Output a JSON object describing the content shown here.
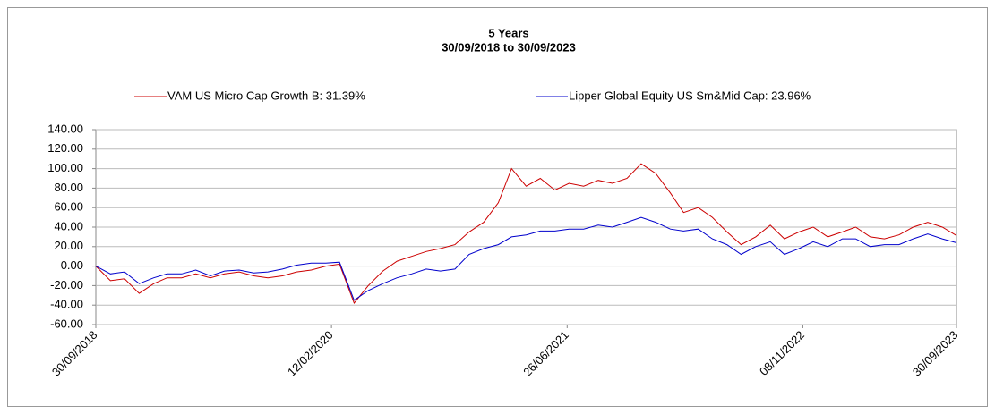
{
  "chart_data": {
    "type": "line",
    "title": "5 Years",
    "subtitle": "30/09/2018 to 30/09/2023",
    "x": [
      "30/09/2018",
      "31/10/2018",
      "30/11/2018",
      "31/12/2018",
      "31/01/2019",
      "28/02/2019",
      "31/03/2019",
      "30/04/2019",
      "31/05/2019",
      "30/06/2019",
      "31/07/2019",
      "31/08/2019",
      "30/09/2019",
      "31/10/2019",
      "30/11/2019",
      "31/12/2019",
      "31/01/2020",
      "29/02/2020",
      "31/03/2020",
      "30/04/2020",
      "31/05/2020",
      "30/06/2020",
      "31/07/2020",
      "31/08/2020",
      "30/09/2020",
      "31/10/2020",
      "30/11/2020",
      "31/12/2020",
      "31/01/2021",
      "28/02/2021",
      "31/03/2021",
      "30/04/2021",
      "31/05/2021",
      "30/06/2021",
      "31/07/2021",
      "31/08/2021",
      "30/09/2021",
      "31/10/2021",
      "30/11/2021",
      "31/12/2021",
      "31/01/2022",
      "28/02/2022",
      "31/03/2022",
      "30/04/2022",
      "31/05/2022",
      "30/06/2022",
      "31/07/2022",
      "31/08/2022",
      "30/09/2022",
      "31/10/2022",
      "30/11/2022",
      "31/12/2022",
      "31/01/2023",
      "28/02/2023",
      "31/03/2023",
      "30/04/2023",
      "31/05/2023",
      "30/06/2023",
      "31/07/2023",
      "31/08/2023",
      "30/09/2023"
    ],
    "series": [
      {
        "name": "VAM US Micro Cap Growth B: 31.39%",
        "color": "#cc0000",
        "values": [
          0,
          -15,
          -13,
          -28,
          -18,
          -12,
          -12,
          -8,
          -12,
          -8,
          -6,
          -10,
          -12,
          -10,
          -6,
          -4,
          0,
          2,
          -38,
          -20,
          -5,
          5,
          10,
          15,
          18,
          22,
          35,
          45,
          65,
          100,
          82,
          90,
          78,
          85,
          82,
          88,
          85,
          90,
          105,
          95,
          75,
          55,
          60,
          50,
          35,
          22,
          30,
          42,
          28,
          35,
          40,
          30,
          35,
          40,
          30,
          28,
          32,
          40,
          45,
          40,
          31.39
        ]
      },
      {
        "name": "Lipper Global Equity US Sm&Mid Cap: 23.96%",
        "color": "#0000cc",
        "values": [
          0,
          -8,
          -6,
          -18,
          -12,
          -8,
          -8,
          -4,
          -10,
          -5,
          -4,
          -7,
          -6,
          -3,
          1,
          3,
          3,
          4,
          -35,
          -25,
          -18,
          -12,
          -8,
          -3,
          -5,
          -3,
          12,
          18,
          22,
          30,
          32,
          36,
          36,
          38,
          38,
          42,
          40,
          45,
          50,
          45,
          38,
          36,
          38,
          28,
          22,
          12,
          20,
          25,
          12,
          18,
          25,
          20,
          28,
          28,
          20,
          22,
          22,
          28,
          33,
          28,
          23.96
        ]
      }
    ],
    "xticks": [
      "30/09/2018",
      "12/02/2020",
      "26/06/2021",
      "08/11/2022",
      "30/09/2023"
    ],
    "ylim": [
      -60,
      140
    ],
    "yticks": [
      {
        "value": -60,
        "label": "-60.00"
      },
      {
        "value": -40,
        "label": "-40.00"
      },
      {
        "value": -20,
        "label": "-20.00"
      },
      {
        "value": 0,
        "label": "0.00"
      },
      {
        "value": 20,
        "label": "20.00"
      },
      {
        "value": 40,
        "label": "40.00"
      },
      {
        "value": 60,
        "label": "60.00"
      },
      {
        "value": 80,
        "label": "80.00"
      },
      {
        "value": 100,
        "label": "100.00"
      },
      {
        "value": 120,
        "label": "120.00"
      },
      {
        "value": 140,
        "label": "140.00"
      }
    ],
    "grid": true
  }
}
